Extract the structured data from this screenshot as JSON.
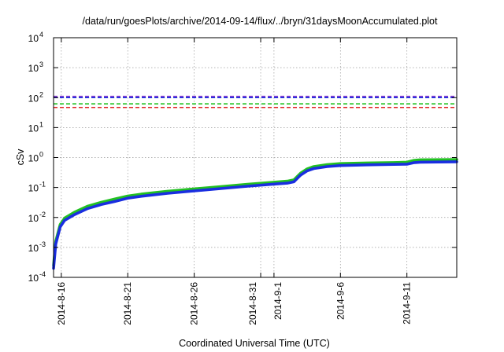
{
  "chart_data": {
    "type": "line",
    "title": "/data/run/goesPlots/archive/2014-09-14/flux/../bryn/31daysMoonAccumulated.plot",
    "xlabel": "Coordinated Universal Time (UTC)",
    "ylabel": "cSv",
    "y_scale": "log",
    "ylim": [
      0.0001,
      10000
    ],
    "xlim": [
      "2014-08-15T10:00",
      "2014-09-14T18:00"
    ],
    "grid": true,
    "y_ticks": [
      {
        "value": 0.0001,
        "base": "10",
        "exp": "-4"
      },
      {
        "value": 0.001,
        "base": "10",
        "exp": "-3"
      },
      {
        "value": 0.01,
        "base": "10",
        "exp": "-2"
      },
      {
        "value": 0.1,
        "base": "10",
        "exp": "-1"
      },
      {
        "value": 1,
        "base": "10",
        "exp": "0"
      },
      {
        "value": 10,
        "base": "10",
        "exp": "1"
      },
      {
        "value": 100,
        "base": "10",
        "exp": "2"
      },
      {
        "value": 1000,
        "base": "10",
        "exp": "3"
      },
      {
        "value": 10000,
        "base": "10",
        "exp": "4"
      }
    ],
    "x_ticks": [
      {
        "date": "2014-08-16",
        "label": "2014-8-16"
      },
      {
        "date": "2014-08-21",
        "label": "2014-8-21"
      },
      {
        "date": "2014-08-26",
        "label": "2014-8-26"
      },
      {
        "date": "2014-08-31",
        "label": "2014-8-31"
      },
      {
        "date": "2014-09-01",
        "label": "2014-9-1"
      },
      {
        "date": "2014-09-06",
        "label": "2014-9-6"
      },
      {
        "date": "2014-09-11",
        "label": "2014-9-11"
      }
    ],
    "reference_lines": [
      {
        "value": 110,
        "color": "#8b3fcf"
      },
      {
        "value": 100,
        "color": "#1030e0"
      },
      {
        "value": 62,
        "color": "#22c022"
      },
      {
        "value": 47,
        "color": "#e02020"
      }
    ],
    "series": [
      {
        "color": "#22c022",
        "x": [
          "2014-08-15T10:00",
          "2014-08-15T14:00",
          "2014-08-15T22:00",
          "2014-08-16T06:00",
          "2014-08-17T00:00",
          "2014-08-18T00:00",
          "2014-08-19T00:00",
          "2014-08-20T00:00",
          "2014-08-21T00:00",
          "2014-08-22T00:00",
          "2014-08-24T00:00",
          "2014-08-26T00:00",
          "2014-08-28T00:00",
          "2014-08-30T00:00",
          "2014-09-01T00:00",
          "2014-09-02T00:00",
          "2014-09-02T12:00",
          "2014-09-03T00:00",
          "2014-09-03T12:00",
          "2014-09-04T00:00",
          "2014-09-05T00:00",
          "2014-09-06T00:00",
          "2014-09-08T00:00",
          "2014-09-10T00:00",
          "2014-09-11T00:00",
          "2014-09-11T12:00",
          "2014-09-12T00:00",
          "2014-09-14T18:00"
        ],
        "y": [
          0.00025,
          0.0016,
          0.0058,
          0.0095,
          0.015,
          0.024,
          0.032,
          0.041,
          0.052,
          0.06,
          0.075,
          0.09,
          0.107,
          0.128,
          0.15,
          0.162,
          0.18,
          0.3,
          0.42,
          0.5,
          0.58,
          0.63,
          0.66,
          0.68,
          0.7,
          0.8,
          0.84,
          0.86
        ]
      },
      {
        "color": "#1a2ee0",
        "x": [
          "2014-08-15T10:00",
          "2014-08-15T14:00",
          "2014-08-15T22:00",
          "2014-08-16T06:00",
          "2014-08-17T00:00",
          "2014-08-18T00:00",
          "2014-08-19T00:00",
          "2014-08-20T00:00",
          "2014-08-21T00:00",
          "2014-08-22T00:00",
          "2014-08-24T00:00",
          "2014-08-26T00:00",
          "2014-08-28T00:00",
          "2014-08-30T00:00",
          "2014-09-01T00:00",
          "2014-09-02T00:00",
          "2014-09-02T12:00",
          "2014-09-03T00:00",
          "2014-09-03T12:00",
          "2014-09-04T00:00",
          "2014-09-05T00:00",
          "2014-09-06T00:00",
          "2014-09-08T00:00",
          "2014-09-10T00:00",
          "2014-09-11T00:00",
          "2014-09-11T12:00",
          "2014-09-12T00:00",
          "2014-09-14T18:00"
        ],
        "y": [
          0.0002,
          0.0013,
          0.0048,
          0.008,
          0.0125,
          0.02,
          0.027,
          0.034,
          0.044,
          0.051,
          0.064,
          0.077,
          0.092,
          0.11,
          0.13,
          0.14,
          0.155,
          0.26,
          0.36,
          0.43,
          0.5,
          0.54,
          0.57,
          0.59,
          0.6,
          0.67,
          0.7,
          0.72
        ]
      }
    ]
  }
}
